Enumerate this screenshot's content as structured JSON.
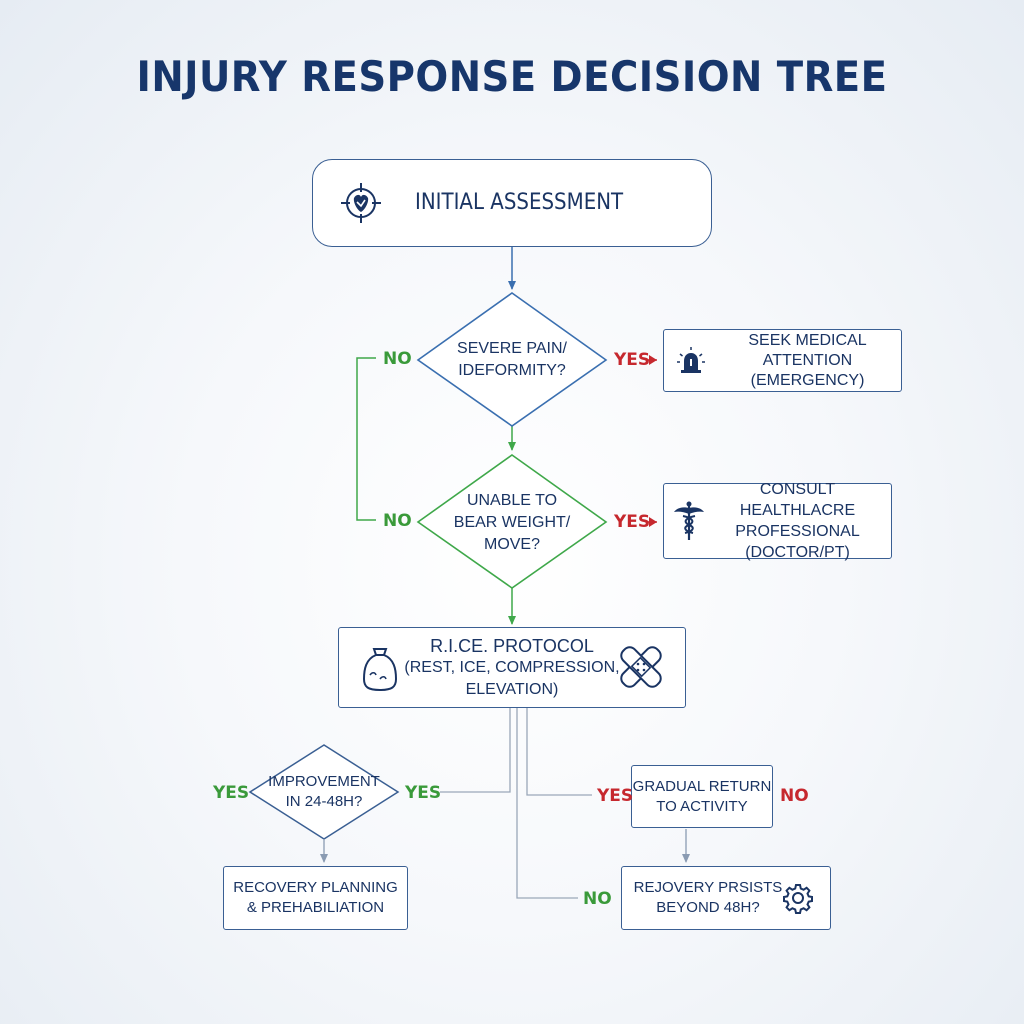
{
  "title": "INJURY RESPONSE DECISION TREE",
  "nodes": {
    "initial": {
      "label": "INITIAL ASSESSMENT"
    },
    "severe": {
      "lines": [
        "SEVERE PAIN/",
        "IDEFORMITY?"
      ]
    },
    "emergency": {
      "lines": [
        "SEEK MEDICAL ATTENTION",
        "(EMERGENCY)"
      ]
    },
    "weight": {
      "lines": [
        "UNABLE TO",
        "BEAR WEIGHT/",
        "MOVE?"
      ]
    },
    "consult": {
      "lines": [
        "CONSULT HEALTHLACRE",
        "PROFESSIONAL",
        "(DOCTOR/PT)"
      ]
    },
    "rice": {
      "lines": [
        "R.I.CE. PROTOCOL",
        "(REST, ICE, COMPRESSION,",
        "ELEVATION)"
      ]
    },
    "improvement": {
      "lines": [
        "IMPROVEMENT",
        "IN 24-48H?"
      ]
    },
    "recovery": {
      "lines": [
        "RECOVERY PLANNING",
        "& PREHABILIATION"
      ]
    },
    "gradual": {
      "lines": [
        "GRADUAL RETURN",
        "TO ACTIVITY"
      ]
    },
    "persists": {
      "lines": [
        "REJOVERY PRSISTS",
        "BEYOND 48H?"
      ]
    }
  },
  "branch_labels": {
    "severe_no": "NO",
    "severe_yes": "YES",
    "weight_no": "NO",
    "weight_yes": "YES",
    "improvement_yes_left": "YES",
    "improvement_yes_right": "YES",
    "gradual_yes": "YES",
    "gradual_no": "NO",
    "persists_no": "NO"
  },
  "icons": {
    "initial": "target-injury-icon",
    "emergency": "siren-icon",
    "consult": "caduceus-icon",
    "rice_left": "ice-bag-icon",
    "rice_right": "bandage-icon",
    "persists": "gear-icon"
  },
  "colors": {
    "title": "#17366b",
    "box_border": "#3a5f93",
    "text": "#1a3463",
    "yes_red": "#c6282e",
    "no_green": "#3a9a3a",
    "diamond_green": "#3fa84a"
  }
}
